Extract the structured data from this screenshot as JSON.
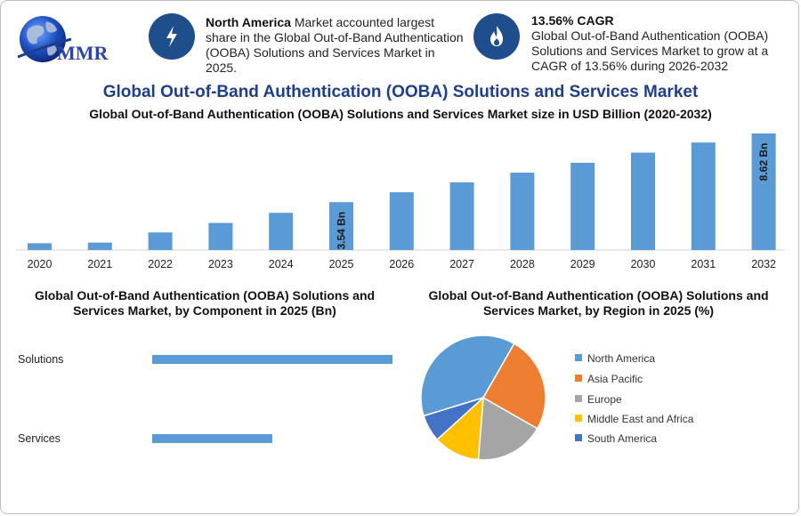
{
  "header": {
    "logo_text": "MMR",
    "info_left": {
      "icon": "lightning-icon",
      "bold": "North America",
      "text": " Market accounted largest share in the Global Out-of-Band Authentication (OOBA) Solutions and Services Market in 2025."
    },
    "info_right": {
      "icon": "flame-icon",
      "bold": "13.56% CAGR",
      "text": "Global Out-of-Band Authentication (OOBA) Solutions and Services Market to grow at a CAGR of 13.56% during 2026-2032"
    }
  },
  "main_title": "Global Out-of-Band Authentication (OOBA) Solutions and Services Market",
  "chart_data": [
    {
      "type": "bar",
      "title": "Global Out-of-Band Authentication (OOBA) Solutions and Services Market size in USD Billion (2020-2032)",
      "categories": [
        "2020",
        "2021",
        "2022",
        "2023",
        "2024",
        "2025",
        "2026",
        "2027",
        "2028",
        "2029",
        "2030",
        "2031",
        "2032"
      ],
      "values": [
        0.5,
        0.55,
        1.3,
        2.0,
        2.75,
        3.54,
        4.27,
        5.0,
        5.72,
        6.45,
        7.2,
        7.95,
        8.62
      ],
      "data_labels": {
        "2025": "3.54 Bn",
        "2032": "8.62 Bn"
      },
      "ylim": [
        0,
        8.62
      ],
      "color": "#5b9bd5"
    },
    {
      "type": "bar",
      "orientation": "horizontal",
      "title": "Global Out-of-Band Authentication (OOBA) Solutions and Services Market, by Component in 2025 (Bn)",
      "categories": [
        "Solutions",
        "Services"
      ],
      "values": [
        2.2,
        1.1
      ],
      "color": "#5b9bd5"
    },
    {
      "type": "pie",
      "title": "Global Out-of-Band Authentication (OOBA) Solutions and Services Market, by Region in 2025 (%)",
      "categories": [
        "North America",
        "Asia Pacific",
        "Europe",
        "Middle East and Africa",
        "South America"
      ],
      "values": [
        38,
        25,
        18,
        12,
        7
      ],
      "colors": [
        "#5b9bd5",
        "#ed7d31",
        "#a5a5a5",
        "#ffc000",
        "#4472c4"
      ],
      "legend_position": "right"
    }
  ]
}
